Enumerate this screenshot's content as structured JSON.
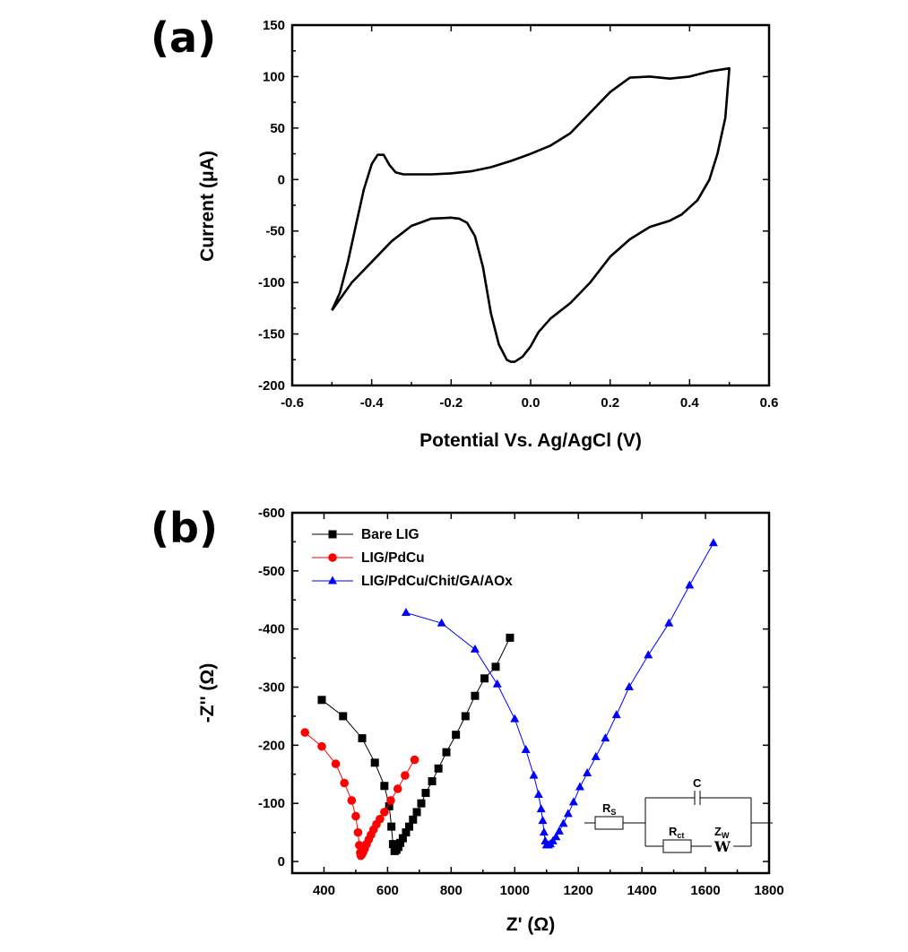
{
  "chart_data": [
    {
      "type": "line",
      "panel_label": "(a)",
      "xlabel": "Potential Vs. Ag/AgCl (V)",
      "ylabel": "Current (μA)",
      "xlim": [
        -0.6,
        0.6
      ],
      "ylim": [
        -200,
        150
      ],
      "xticks": [
        "-0.6",
        "-0.4",
        "-0.2",
        "0.0",
        "0.2",
        "0.4",
        "0.6"
      ],
      "yticks": [
        "-200",
        "-150",
        "-100",
        "-50",
        "0",
        "50",
        "100",
        "150"
      ],
      "color": "#000000",
      "series": [
        {
          "x": [
            -0.5,
            -0.48,
            -0.46,
            -0.44,
            -0.42,
            -0.4,
            -0.385,
            -0.37,
            -0.355,
            -0.34,
            -0.32,
            -0.3,
            -0.25,
            -0.2,
            -0.15,
            -0.1,
            -0.05,
            0.0,
            0.05,
            0.1,
            0.15,
            0.2,
            0.25,
            0.3,
            0.35,
            0.4,
            0.45,
            0.5,
            0.49,
            0.47,
            0.45,
            0.42,
            0.38,
            0.35,
            0.3,
            0.25,
            0.2,
            0.15,
            0.1,
            0.05,
            0.02,
            0.0,
            -0.02,
            -0.04,
            -0.05,
            -0.06,
            -0.08,
            -0.1,
            -0.12,
            -0.14,
            -0.16,
            -0.18,
            -0.2,
            -0.25,
            -0.3,
            -0.35,
            -0.4,
            -0.45,
            -0.5
          ],
          "y": [
            -127,
            -110,
            -80,
            -45,
            -10,
            15,
            24,
            24,
            14,
            7,
            5,
            5,
            5,
            6,
            8,
            12,
            18,
            25,
            33,
            45,
            65,
            85,
            99,
            100,
            98,
            100,
            105,
            108,
            60,
            25,
            0,
            -20,
            -34,
            -40,
            -46,
            -58,
            -75,
            -100,
            -120,
            -135,
            -148,
            -162,
            -172,
            -177,
            -177,
            -175,
            -160,
            -130,
            -85,
            -55,
            -42,
            -38,
            -37,
            -38,
            -45,
            -60,
            -80,
            -100,
            -127
          ]
        }
      ]
    },
    {
      "type": "line",
      "panel_label": "(b)",
      "xlabel": "Z' (Ω)",
      "ylabel": "-Z'' (Ω)",
      "xlim": [
        300,
        1800
      ],
      "ylim": [
        20,
        -600
      ],
      "xticks": [
        "400",
        "600",
        "800",
        "1000",
        "1200",
        "1400",
        "1600",
        "1800"
      ],
      "yticks": [
        "-600",
        "-500",
        "-400",
        "-300",
        "-200",
        "-100",
        "0"
      ],
      "legend_position": "top-left",
      "series": [
        {
          "name": "Bare LIG",
          "color": "#000000",
          "marker": "square",
          "x": [
            393,
            460,
            520,
            560,
            590,
            605,
            612,
            617,
            622,
            628,
            634,
            640,
            648,
            658,
            668,
            680,
            692,
            706,
            720,
            740,
            760,
            785,
            815,
            845,
            875,
            905,
            940,
            985
          ],
          "y": [
            -278,
            -250,
            -212,
            -170,
            -130,
            -95,
            -60,
            -30,
            -18,
            -20,
            -25,
            -32,
            -40,
            -50,
            -60,
            -72,
            -85,
            -100,
            -118,
            -138,
            -160,
            -188,
            -218,
            -250,
            -285,
            -315,
            -335,
            -385
          ]
        },
        {
          "name": "LIG/PdCu",
          "color": "#ff0000",
          "marker": "circle",
          "x": [
            340,
            393,
            437,
            464,
            487,
            500,
            507,
            511,
            514,
            516,
            519,
            523,
            528,
            534,
            541,
            548,
            556,
            565,
            576,
            590,
            610,
            632,
            655,
            685
          ],
          "y": [
            -222,
            -198,
            -168,
            -135,
            -105,
            -78,
            -50,
            -28,
            -15,
            -10,
            -12,
            -16,
            -22,
            -30,
            -38,
            -46,
            -55,
            -64,
            -73,
            -85,
            -105,
            -125,
            -148,
            -175
          ]
        },
        {
          "name": "LIG/PdCu/Chit/GA/AOx",
          "color": "#0000ff",
          "marker": "triangle",
          "x": [
            658,
            770,
            875,
            945,
            1000,
            1035,
            1060,
            1075,
            1083,
            1088,
            1092,
            1096,
            1100,
            1106,
            1112,
            1120,
            1130,
            1140,
            1153,
            1168,
            1185,
            1205,
            1228,
            1255,
            1285,
            1320,
            1360,
            1420,
            1485,
            1550,
            1625
          ],
          "y": [
            -428,
            -410,
            -365,
            -305,
            -245,
            -192,
            -148,
            -115,
            -90,
            -70,
            -50,
            -35,
            -28,
            -28,
            -30,
            -35,
            -42,
            -52,
            -65,
            -82,
            -102,
            -128,
            -152,
            -180,
            -212,
            -252,
            -300,
            -355,
            -410,
            -475,
            -548
          ]
        }
      ],
      "inset_circuit": {
        "labels": [
          "R",
          "S",
          "C",
          "R",
          "ct",
          "Z",
          "W",
          "W"
        ]
      }
    }
  ]
}
